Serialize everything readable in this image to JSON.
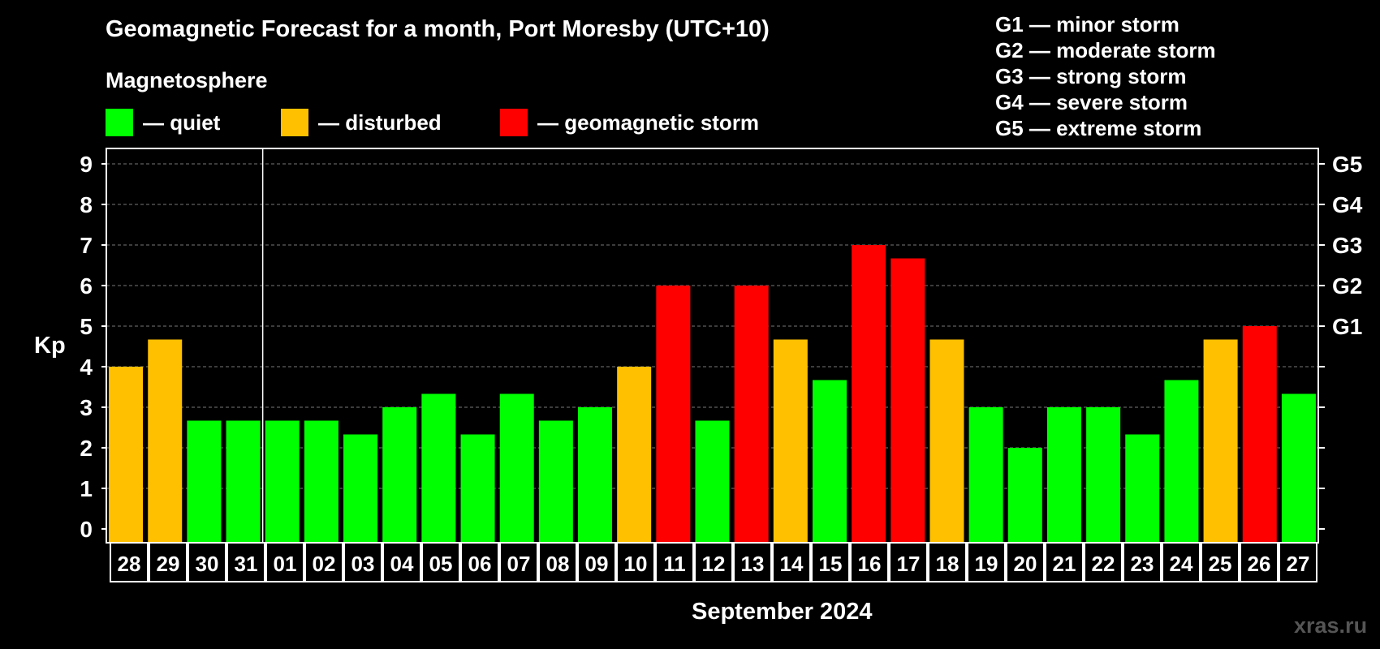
{
  "title": "Geomagnetic Forecast for a month, Port Moresby (UTC+10)",
  "subtitle": "Magnetosphere",
  "legend": [
    {
      "label": "— quiet",
      "color": "#00ff00"
    },
    {
      "label": "— disturbed",
      "color": "#ffc000"
    },
    {
      "label": "— geomagnetic storm",
      "color": "#ff0000"
    }
  ],
  "g_scale": [
    "G1 — minor storm",
    "G2 — moderate storm",
    "G3 — strong storm",
    "G4 — severe storm",
    "G5 — extreme storm"
  ],
  "watermark": "xras.ru",
  "colors": {
    "quiet": "#00ff00",
    "disturbed": "#ffc000",
    "storm": "#ff0000",
    "grid": "#777777",
    "frame": "#ffffff"
  },
  "chart_data": {
    "type": "bar",
    "title": "Geomagnetic Forecast for a month, Port Moresby (UTC+10)",
    "xlabel": "September 2024",
    "ylabel": "Kp",
    "ylim": [
      0,
      9
    ],
    "y_ticks": [
      "0",
      "1",
      "2",
      "3",
      "4",
      "5",
      "6",
      "7",
      "8",
      "9"
    ],
    "right_ticks": [
      {
        "kp": 5,
        "label": "G1"
      },
      {
        "kp": 6,
        "label": "G2"
      },
      {
        "kp": 7,
        "label": "G3"
      },
      {
        "kp": 8,
        "label": "G4"
      },
      {
        "kp": 9,
        "label": "G5"
      }
    ],
    "grid": true,
    "month_divider_after": "31",
    "categories": [
      "28",
      "29",
      "30",
      "31",
      "01",
      "02",
      "03",
      "04",
      "05",
      "06",
      "07",
      "08",
      "09",
      "10",
      "11",
      "12",
      "13",
      "14",
      "15",
      "16",
      "17",
      "18",
      "19",
      "20",
      "21",
      "22",
      "23",
      "24",
      "25",
      "26",
      "27"
    ],
    "values": [
      4.0,
      4.67,
      2.67,
      2.67,
      2.67,
      2.67,
      2.33,
      3.0,
      3.33,
      2.33,
      3.33,
      2.67,
      3.0,
      4.0,
      6.0,
      2.67,
      6.0,
      4.67,
      3.67,
      7.0,
      6.67,
      4.67,
      3.0,
      2.0,
      3.0,
      3.0,
      2.33,
      3.67,
      4.67,
      5.0,
      3.33
    ],
    "status": [
      "disturbed",
      "disturbed",
      "quiet",
      "quiet",
      "quiet",
      "quiet",
      "quiet",
      "quiet",
      "quiet",
      "quiet",
      "quiet",
      "quiet",
      "quiet",
      "disturbed",
      "storm",
      "quiet",
      "storm",
      "disturbed",
      "quiet",
      "storm",
      "storm",
      "disturbed",
      "quiet",
      "quiet",
      "quiet",
      "quiet",
      "quiet",
      "quiet",
      "disturbed",
      "storm",
      "quiet"
    ]
  }
}
